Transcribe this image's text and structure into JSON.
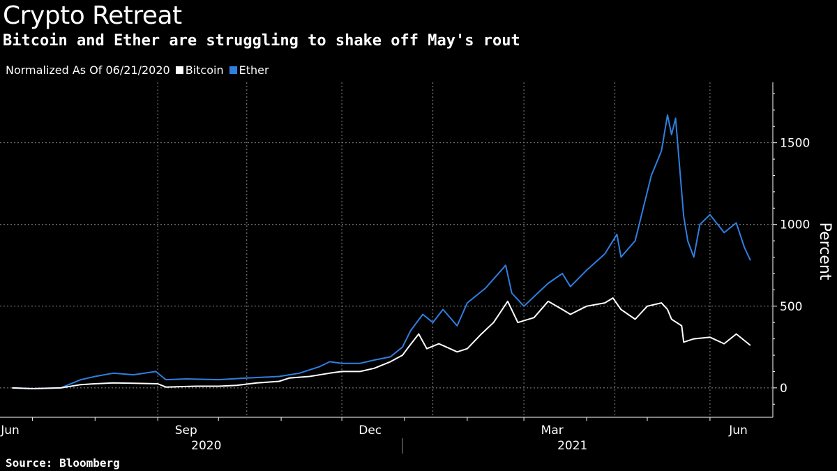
{
  "title": "Crypto Retreat",
  "subtitle": "Bitcoin and Ether are struggling to shake off May's rout",
  "legend": {
    "prefix": "Normalized As Of 06/21/2020",
    "items": [
      {
        "label": "Bitcoin",
        "color": "#ffffff"
      },
      {
        "label": "Ether",
        "color": "#2f7fe0"
      }
    ]
  },
  "source": "Source: Bloomberg",
  "chart_data": {
    "type": "line",
    "ylabel": "Percent",
    "ylim": [
      -180,
      1870
    ],
    "yticks": [
      0,
      500,
      1000,
      1500
    ],
    "grid": true,
    "month_ticks": [
      "Jun",
      "Sep",
      "Dec",
      "Mar",
      "Jun"
    ],
    "year_labels": [
      "2020",
      "2021"
    ],
    "series": [
      {
        "name": "Bitcoin",
        "color": "#ffffff",
        "points": [
          [
            "2020-06-21",
            0
          ],
          [
            "2020-07-01",
            -5
          ],
          [
            "2020-07-15",
            0
          ],
          [
            "2020-07-25",
            20
          ],
          [
            "2020-08-01",
            25
          ],
          [
            "2020-08-10",
            30
          ],
          [
            "2020-08-20",
            28
          ],
          [
            "2020-09-01",
            25
          ],
          [
            "2020-09-05",
            5
          ],
          [
            "2020-09-20",
            10
          ],
          [
            "2020-10-01",
            10
          ],
          [
            "2020-10-10",
            15
          ],
          [
            "2020-10-20",
            30
          ],
          [
            "2020-10-31",
            40
          ],
          [
            "2020-11-05",
            60
          ],
          [
            "2020-11-15",
            70
          ],
          [
            "2020-11-25",
            90
          ],
          [
            "2020-12-01",
            100
          ],
          [
            "2020-12-10",
            100
          ],
          [
            "2020-12-17",
            120
          ],
          [
            "2020-12-25",
            160
          ],
          [
            "2020-12-31",
            200
          ],
          [
            "2021-01-03",
            250
          ],
          [
            "2021-01-08",
            330
          ],
          [
            "2021-01-12",
            240
          ],
          [
            "2021-01-18",
            270
          ],
          [
            "2021-01-27",
            220
          ],
          [
            "2021-02-01",
            240
          ],
          [
            "2021-02-08",
            330
          ],
          [
            "2021-02-14",
            400
          ],
          [
            "2021-02-21",
            530
          ],
          [
            "2021-02-26",
            400
          ],
          [
            "2021-03-06",
            430
          ],
          [
            "2021-03-13",
            530
          ],
          [
            "2021-03-20",
            480
          ],
          [
            "2021-03-24",
            450
          ],
          [
            "2021-04-01",
            500
          ],
          [
            "2021-04-10",
            520
          ],
          [
            "2021-04-14",
            550
          ],
          [
            "2021-04-18",
            480
          ],
          [
            "2021-04-25",
            420
          ],
          [
            "2021-05-01",
            500
          ],
          [
            "2021-05-08",
            520
          ],
          [
            "2021-05-11",
            480
          ],
          [
            "2021-05-13",
            420
          ],
          [
            "2021-05-18",
            380
          ],
          [
            "2021-05-19",
            280
          ],
          [
            "2021-05-24",
            300
          ],
          [
            "2021-06-01",
            310
          ],
          [
            "2021-06-08",
            270
          ],
          [
            "2021-06-14",
            330
          ],
          [
            "2021-06-21",
            260
          ]
        ]
      },
      {
        "name": "Ether",
        "color": "#2f7fe0",
        "points": [
          [
            "2020-06-21",
            0
          ],
          [
            "2020-07-01",
            -5
          ],
          [
            "2020-07-15",
            0
          ],
          [
            "2020-07-25",
            50
          ],
          [
            "2020-08-01",
            70
          ],
          [
            "2020-08-10",
            90
          ],
          [
            "2020-08-20",
            80
          ],
          [
            "2020-08-31",
            100
          ],
          [
            "2020-09-05",
            50
          ],
          [
            "2020-09-15",
            55
          ],
          [
            "2020-10-01",
            50
          ],
          [
            "2020-10-15",
            60
          ],
          [
            "2020-10-31",
            70
          ],
          [
            "2020-11-10",
            90
          ],
          [
            "2020-11-20",
            130
          ],
          [
            "2020-11-25",
            160
          ],
          [
            "2020-12-01",
            150
          ],
          [
            "2020-12-10",
            150
          ],
          [
            "2020-12-17",
            170
          ],
          [
            "2020-12-25",
            190
          ],
          [
            "2020-12-31",
            250
          ],
          [
            "2021-01-04",
            350
          ],
          [
            "2021-01-10",
            450
          ],
          [
            "2021-01-15",
            400
          ],
          [
            "2021-01-20",
            480
          ],
          [
            "2021-01-27",
            380
          ],
          [
            "2021-02-01",
            520
          ],
          [
            "2021-02-10",
            610
          ],
          [
            "2021-02-20",
            750
          ],
          [
            "2021-02-23",
            580
          ],
          [
            "2021-03-01",
            500
          ],
          [
            "2021-03-13",
            640
          ],
          [
            "2021-03-20",
            700
          ],
          [
            "2021-03-24",
            620
          ],
          [
            "2021-04-01",
            720
          ],
          [
            "2021-04-10",
            820
          ],
          [
            "2021-04-16",
            940
          ],
          [
            "2021-04-18",
            800
          ],
          [
            "2021-04-25",
            900
          ],
          [
            "2021-04-29",
            1100
          ],
          [
            "2021-05-03",
            1300
          ],
          [
            "2021-05-08",
            1450
          ],
          [
            "2021-05-11",
            1670
          ],
          [
            "2021-05-13",
            1550
          ],
          [
            "2021-05-15",
            1650
          ],
          [
            "2021-05-19",
            1050
          ],
          [
            "2021-05-21",
            900
          ],
          [
            "2021-05-24",
            800
          ],
          [
            "2021-05-27",
            1000
          ],
          [
            "2021-06-01",
            1060
          ],
          [
            "2021-06-08",
            950
          ],
          [
            "2021-06-14",
            1010
          ],
          [
            "2021-06-18",
            860
          ],
          [
            "2021-06-21",
            780
          ]
        ]
      }
    ]
  }
}
